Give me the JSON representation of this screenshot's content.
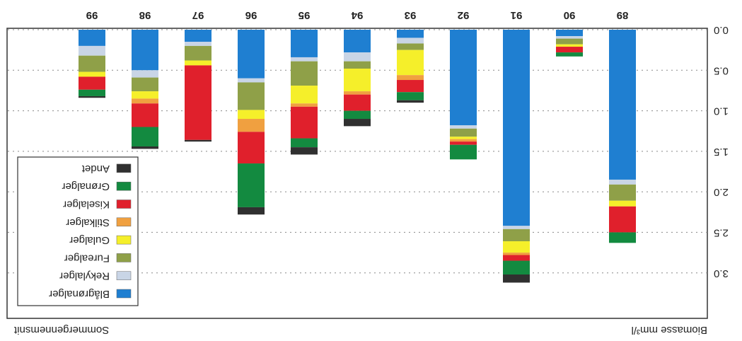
{
  "chart_data": {
    "type": "stacked_bar",
    "title": "Sommergennemsnit",
    "y_label": "Biomasse mm³/l",
    "categories": [
      "89",
      "90",
      "91",
      "92",
      "93",
      "94",
      "95",
      "96",
      "97",
      "98",
      "99"
    ],
    "series": [
      {
        "name": "Blågrønalger",
        "color": "#1f7fd1",
        "values": [
          1.85,
          0.08,
          2.42,
          1.18,
          0.1,
          0.28,
          0.34,
          0.6,
          0.15,
          0.5,
          0.2
        ]
      },
      {
        "name": "Rekylalger",
        "color": "#c9d5e6",
        "values": [
          0.06,
          0.03,
          0.04,
          0.04,
          0.07,
          0.11,
          0.05,
          0.05,
          0.05,
          0.09,
          0.12
        ]
      },
      {
        "name": "Furealger",
        "color": "#8fa048",
        "values": [
          0.2,
          0.07,
          0.15,
          0.1,
          0.08,
          0.09,
          0.3,
          0.34,
          0.18,
          0.17,
          0.2
        ]
      },
      {
        "name": "Gulalger",
        "color": "#f5ef2a",
        "values": [
          0.07,
          0.03,
          0.14,
          0.03,
          0.31,
          0.28,
          0.22,
          0.11,
          0.06,
          0.09,
          0.06
        ]
      },
      {
        "name": "Stilkalger",
        "color": "#f0a040",
        "values": [
          0,
          0,
          0.03,
          0.03,
          0.06,
          0.04,
          0.04,
          0.16,
          0,
          0.06,
          0
        ]
      },
      {
        "name": "Kiselalger",
        "color": "#e0202c",
        "values": [
          0.32,
          0.07,
          0.07,
          0.04,
          0.15,
          0.2,
          0.39,
          0.39,
          0.92,
          0.29,
          0.16
        ]
      },
      {
        "name": "Grønalger",
        "color": "#138a40",
        "values": [
          0.13,
          0.05,
          0.17,
          0.18,
          0.1,
          0.1,
          0.11,
          0.54,
          0,
          0.24,
          0.08
        ]
      },
      {
        "name": "Andet",
        "color": "#303030",
        "values": [
          0,
          0,
          0.1,
          0,
          0.03,
          0.09,
          0.09,
          0.09,
          0.02,
          0.03,
          0.02
        ]
      }
    ],
    "ylim": [
      0,
      3.5
    ],
    "yticks": [
      {
        "value": 0,
        "label": "0.0"
      },
      0.5,
      {
        "value": 1,
        "label": "1.0"
      },
      1.5,
      {
        "value": 2,
        "label": "2.0"
      },
      2.5,
      {
        "value": 3,
        "label": "3.0"
      }
    ],
    "grid": true,
    "legend": "upper right",
    "rotated": true
  }
}
